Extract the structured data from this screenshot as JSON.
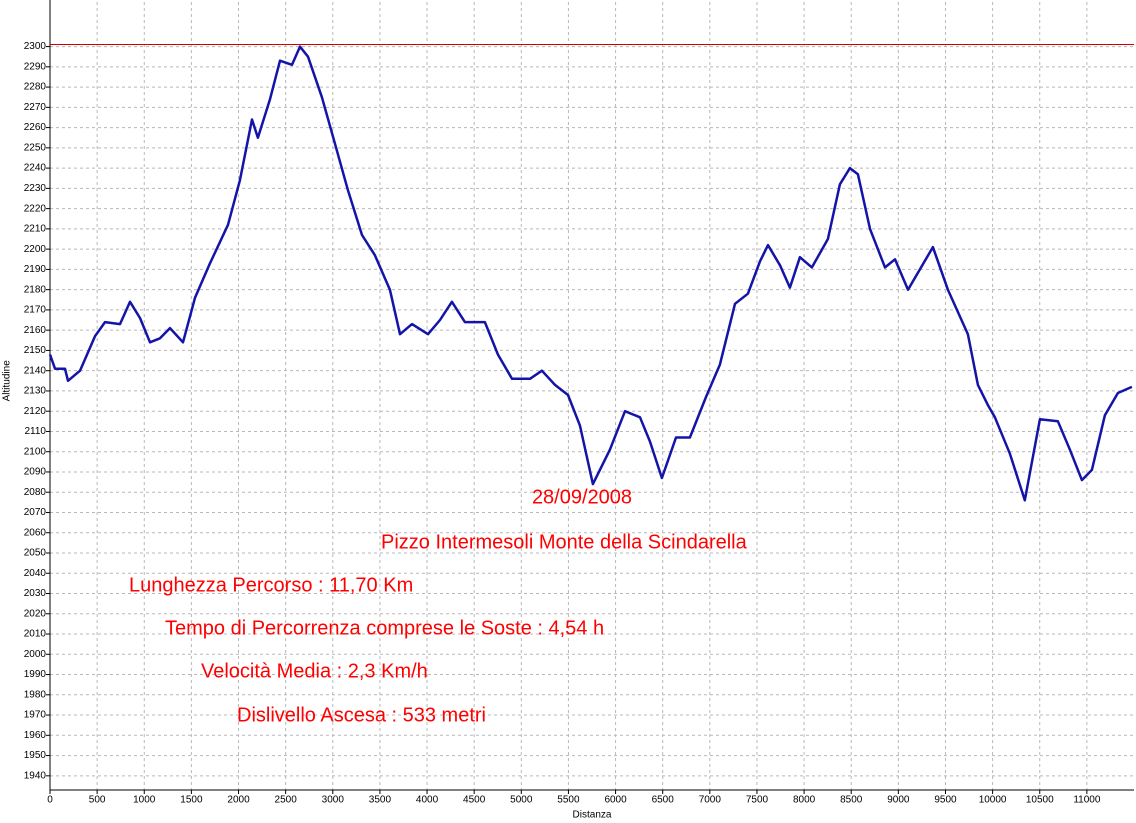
{
  "chart_data": {
    "type": "line",
    "xlabel": "Distanza",
    "ylabel": "Altitudine",
    "color": "#1414a8",
    "x": [
      0,
      53,
      159,
      191,
      318,
      403,
      477,
      583,
      743,
      849,
      955,
      1061,
      1167,
      1273,
      1411,
      1538,
      1697,
      1888,
      2015,
      2143,
      2206,
      2334,
      2440,
      2567,
      2652,
      2737,
      2885,
      3023,
      3161,
      3310,
      3447,
      3606,
      3713,
      3840,
      4010,
      4137,
      4264,
      4402,
      4614,
      4752,
      4901,
      5092,
      5219,
      5357,
      5495,
      5622,
      5760,
      5940,
      6100,
      6259,
      6365,
      6492,
      6641,
      6789,
      6959,
      7107,
      7267,
      7404,
      7532,
      7617,
      7744,
      7850,
      7956,
      8083,
      8253,
      8380,
      8486,
      8571,
      8699,
      8858,
      8964,
      9102,
      9229,
      9367,
      9526,
      9738,
      9844,
      9950,
      10024,
      10183,
      10342,
      10502,
      10693,
      10820,
      10947,
      11053,
      11191,
      11329,
      11478
    ],
    "values": [
      2148,
      2141,
      2141,
      2135,
      2140,
      2149,
      2157,
      2164,
      2163,
      2174,
      2166,
      2154,
      2156,
      2161,
      2154,
      2176,
      2193,
      2212,
      2234,
      2264,
      2255,
      2274,
      2293,
      2291,
      2300,
      2295,
      2275,
      2252,
      2229,
      2207,
      2197,
      2180,
      2158,
      2163,
      2158,
      2165,
      2174,
      2164,
      2164,
      2148,
      2136,
      2136,
      2140,
      2133,
      2128,
      2113,
      2084,
      2101,
      2120,
      2117,
      2105,
      2087,
      2107,
      2107,
      2127,
      2143,
      2173,
      2178,
      2194,
      2202,
      2192,
      2181,
      2196,
      2191,
      2205,
      2232,
      2240,
      2237,
      2210,
      2191,
      2195,
      2180,
      2190,
      2201,
      2180,
      2158,
      2133,
      2123,
      2117,
      2099,
      2076,
      2116,
      2115,
      2101,
      2086,
      2091,
      2118,
      2129,
      2132
    ],
    "xlim": [
      0,
      11500
    ],
    "ylim": [
      1933,
      2322
    ],
    "xticks": [
      0,
      500,
      1000,
      1500,
      2000,
      2500,
      3000,
      3500,
      4000,
      4500,
      5000,
      5500,
      6000,
      6500,
      7000,
      7500,
      8000,
      8500,
      9000,
      9500,
      10000,
      10500,
      11000
    ],
    "yticks": [
      1940,
      1950,
      1960,
      1970,
      1980,
      1990,
      2000,
      2010,
      2020,
      2030,
      2040,
      2050,
      2060,
      2070,
      2080,
      2090,
      2100,
      2110,
      2120,
      2130,
      2140,
      2150,
      2160,
      2170,
      2180,
      2190,
      2200,
      2210,
      2220,
      2230,
      2240,
      2250,
      2260,
      2270,
      2280,
      2290,
      2300
    ],
    "grid": true,
    "reference_line": {
      "value": 2301,
      "color": "#d00000"
    },
    "annotation_color": "#ff0000",
    "annotations": [
      "28/09/2008",
      "Pizzo Intermesoli Monte della Scindarella",
      "Lunghezza Percorso : 11,70 Km",
      "Tempo di Percorrenza comprese le Soste : 4,54 h",
      "Velocità Media : 2,3 Km/h",
      "Dislivello Ascesa : 533 metri"
    ]
  }
}
